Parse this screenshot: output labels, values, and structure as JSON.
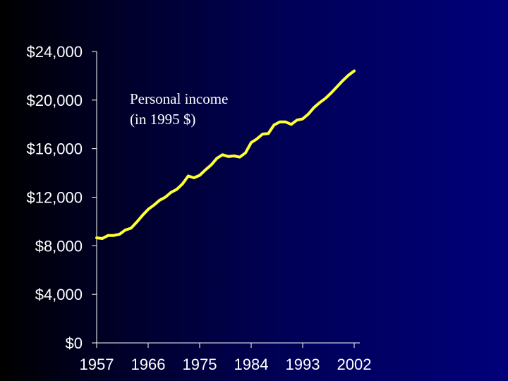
{
  "chart_data": {
    "type": "line",
    "title": "",
    "xlabel": "",
    "ylabel": "",
    "annotation": [
      "Personal income",
      "(in 1995 $)"
    ],
    "xlim": [
      1957,
      2002
    ],
    "ylim": [
      0,
      24000
    ],
    "x_ticks": [
      1957,
      1966,
      1975,
      1984,
      1993,
      2002
    ],
    "x_tick_labels": [
      "1957",
      "1966",
      "1975",
      "1984",
      "1993",
      "2002"
    ],
    "y_ticks": [
      0,
      4000,
      8000,
      12000,
      16000,
      20000,
      24000
    ],
    "y_tick_labels": [
      "$0",
      "$4,000",
      "$8,000",
      "$12,000",
      "$16,000",
      "$20,000",
      "$24,000"
    ],
    "line_color": "#ffff33",
    "grid": false,
    "series": [
      {
        "x": [
          1957,
          1958,
          1959,
          1960,
          1961,
          1962,
          1963,
          1964,
          1965,
          1966,
          1967,
          1968,
          1969,
          1970,
          1971,
          1972,
          1973,
          1974,
          1975,
          1976,
          1977,
          1978,
          1979,
          1980,
          1981,
          1982,
          1983,
          1984,
          1985,
          1986,
          1987,
          1988,
          1989,
          1990,
          1991,
          1992,
          1993,
          1994,
          1995,
          1996,
          1997,
          1998,
          1999,
          2000,
          2001,
          2002
        ],
        "values": [
          8650,
          8600,
          8850,
          8850,
          8950,
          9300,
          9450,
          9950,
          10500,
          11000,
          11350,
          11750,
          12000,
          12400,
          12650,
          13100,
          13750,
          13600,
          13800,
          14250,
          14650,
          15200,
          15500,
          15350,
          15400,
          15300,
          15650,
          16500,
          16800,
          17200,
          17250,
          17950,
          18200,
          18200,
          18000,
          18350,
          18450,
          18850,
          19400,
          19800,
          20150,
          20600,
          21100,
          21600,
          22050,
          22400
        ]
      }
    ]
  }
}
